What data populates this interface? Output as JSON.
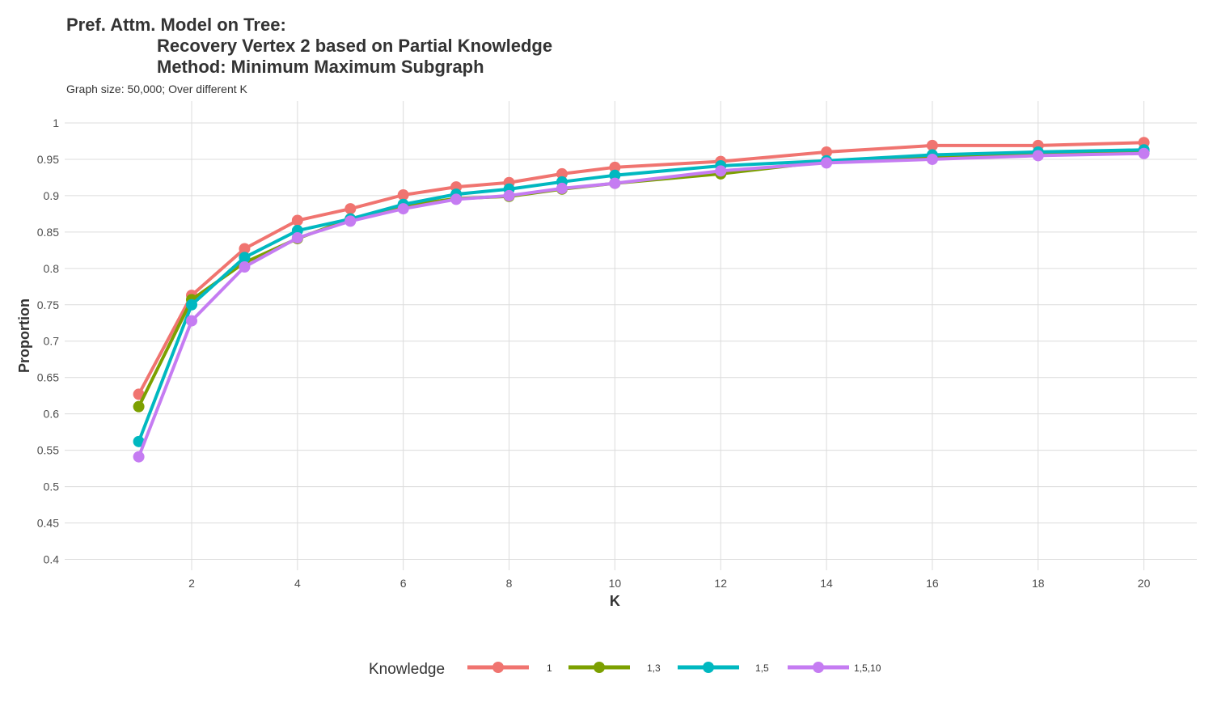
{
  "title": {
    "line1": "Pref. Attm. Model on Tree:",
    "line2": "Recovery Vertex 2 based on Partial Knowledge",
    "line3": "Method: Minimum Maximum Subgraph"
  },
  "subtitle": "Graph size: 50,000; Over different K",
  "chart_data": {
    "type": "line",
    "title": "Pref. Attm. Model on Tree: Recovery Vertex 2 based on Partial Knowledge Method: Minimum Maximum Subgraph",
    "subtitle": "Graph size: 50,000; Over different K",
    "xlabel": "K",
    "ylabel": "Proportion",
    "x": [
      1,
      2,
      3,
      4,
      5,
      6,
      7,
      8,
      9,
      10,
      12,
      14,
      16,
      18,
      20
    ],
    "xticks": [
      "2",
      "4",
      "6",
      "8",
      "10",
      "12",
      "14",
      "16",
      "18",
      "20"
    ],
    "yticks": [
      "0.4",
      "0.45",
      "0.5",
      "0.55",
      "0.6",
      "0.65",
      "0.7",
      "0.75",
      "0.8",
      "0.85",
      "0.9",
      "0.95",
      "1"
    ],
    "xlim": [
      -0.4,
      21
    ],
    "ylim": [
      0.385,
      1.03
    ],
    "grid": true,
    "legend_title": "Knowledge",
    "legend_position": "bottom",
    "series": [
      {
        "name": "1",
        "color": "#F07470",
        "values": [
          0.627,
          0.763,
          0.827,
          0.866,
          0.882,
          0.901,
          0.912,
          0.918,
          0.93,
          0.939,
          0.947,
          0.96,
          0.969,
          0.969,
          0.973
        ]
      },
      {
        "name": "1,3",
        "color": "#7CA000",
        "values": [
          0.61,
          0.757,
          0.808,
          0.841,
          0.868,
          0.886,
          0.896,
          0.899,
          0.909,
          0.917,
          0.93,
          0.947,
          0.952,
          0.958,
          0.961
        ]
      },
      {
        "name": "1,5",
        "color": "#00B8C0",
        "values": [
          0.562,
          0.75,
          0.815,
          0.852,
          0.868,
          0.888,
          0.902,
          0.909,
          0.919,
          0.928,
          0.941,
          0.948,
          0.956,
          0.96,
          0.963
        ]
      },
      {
        "name": "1,5,10",
        "color": "#C57CF2",
        "values": [
          0.541,
          0.728,
          0.802,
          0.842,
          0.865,
          0.882,
          0.895,
          0.9,
          0.91,
          0.917,
          0.934,
          0.945,
          0.95,
          0.955,
          0.958
        ]
      }
    ]
  }
}
